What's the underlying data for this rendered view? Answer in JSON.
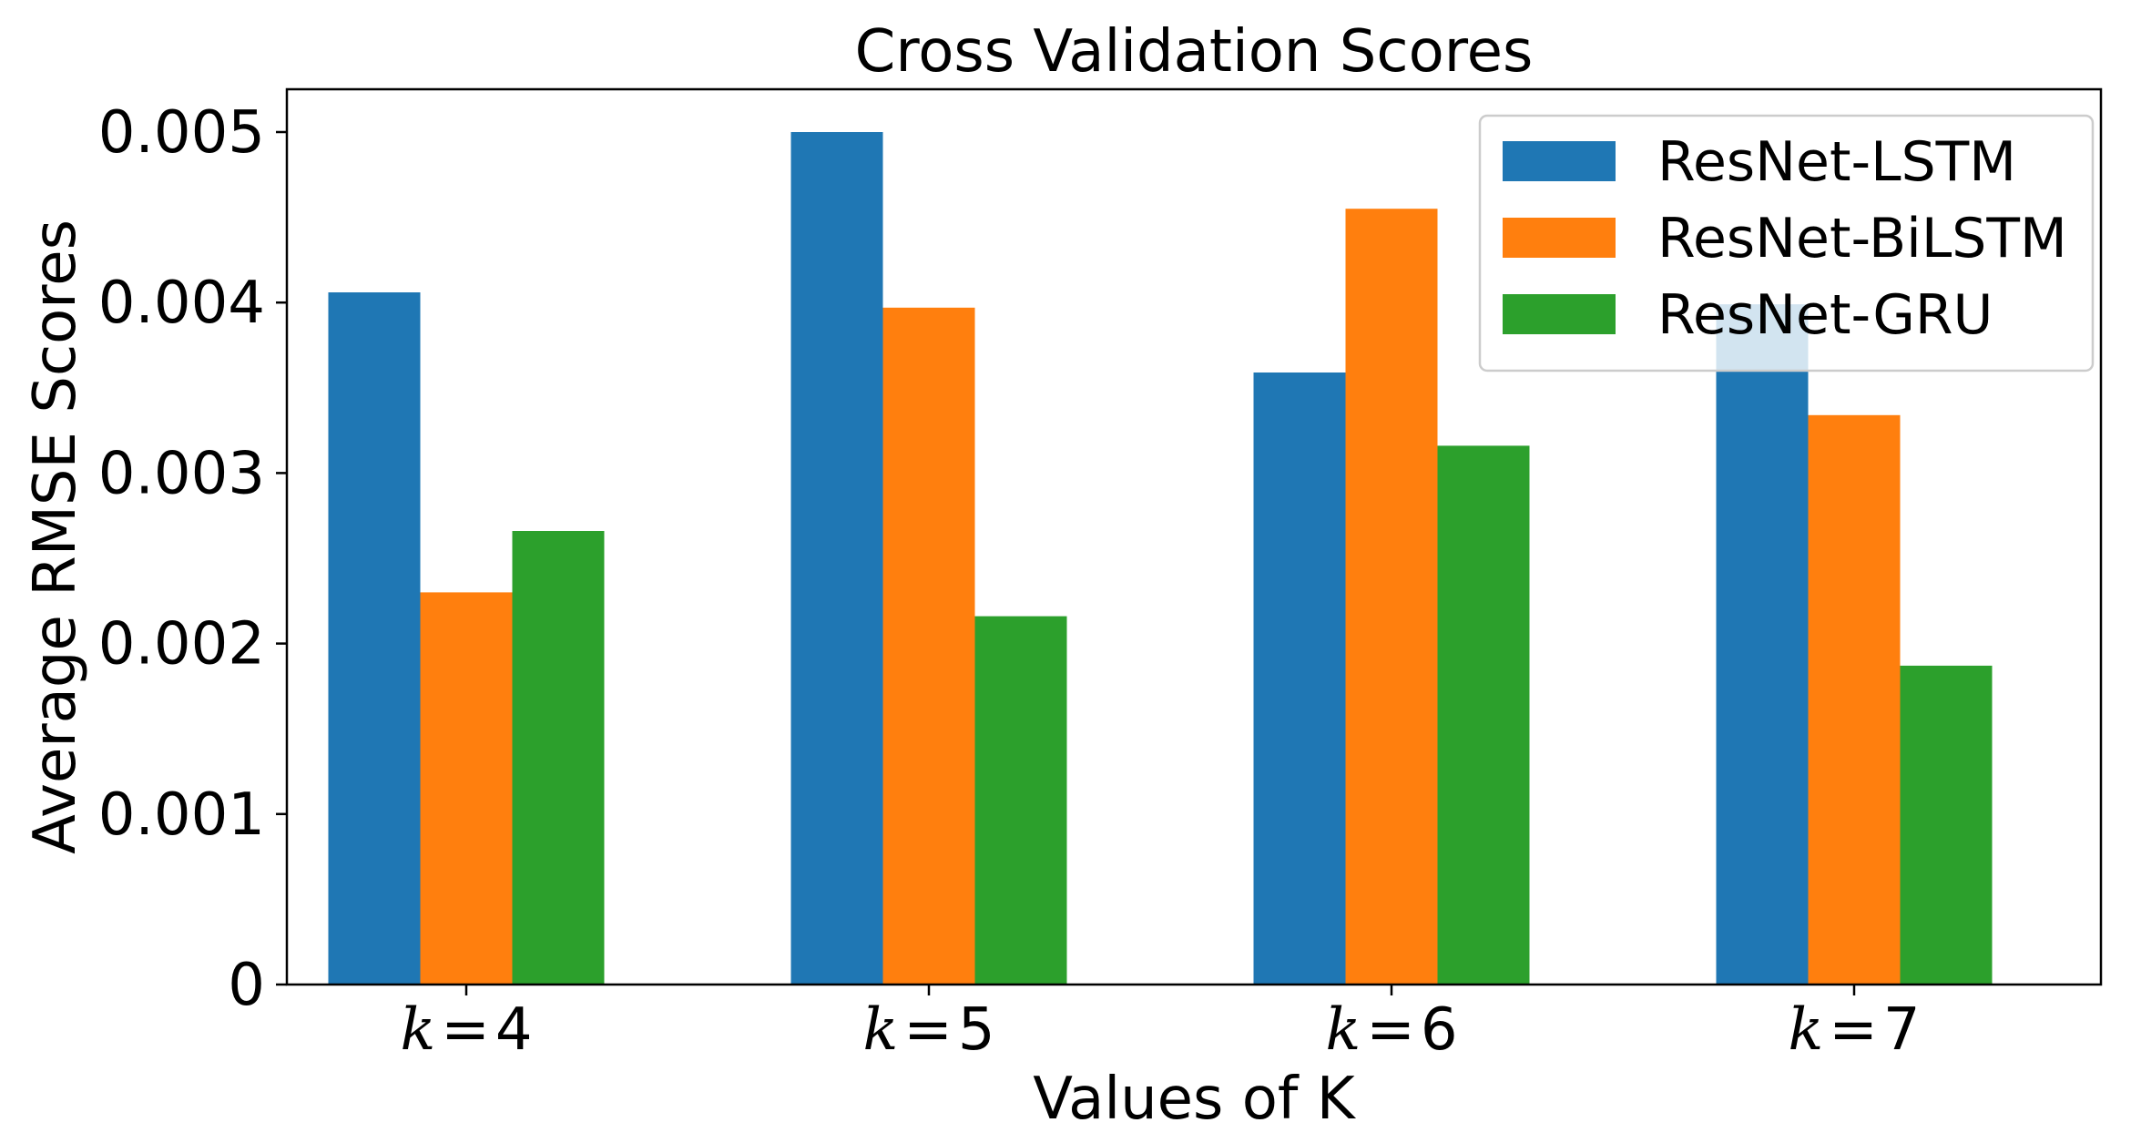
{
  "chart_data": {
    "type": "bar",
    "title": "Cross Validation Scores",
    "xlabel": "Values of K",
    "ylabel": "Average RMSE Scores",
    "categories": [
      {
        "var": "k",
        "eq": "=",
        "num": "4"
      },
      {
        "var": "k",
        "eq": "=",
        "num": "5"
      },
      {
        "var": "k",
        "eq": "=",
        "num": "6"
      },
      {
        "var": "k",
        "eq": "=",
        "num": "7"
      }
    ],
    "ylim": [
      0,
      0.0052
    ],
    "yticks": [
      {
        "value": 0,
        "label": "0"
      },
      {
        "value": 0.001,
        "label": "0.001"
      },
      {
        "value": 0.002,
        "label": "0.002"
      },
      {
        "value": 0.003,
        "label": "0.003"
      },
      {
        "value": 0.004,
        "label": "0.004"
      },
      {
        "value": 0.005,
        "label": "0.005"
      }
    ],
    "series": [
      {
        "name": "ResNet-LSTM",
        "color": "#1f77b4",
        "values": [
          0.00406,
          0.005,
          0.00359,
          0.00399
        ]
      },
      {
        "name": "ResNet-BiLSTM",
        "color": "#ff7f0e",
        "values": [
          0.0023,
          0.00397,
          0.00455,
          0.00334
        ]
      },
      {
        "name": "ResNet-GRU",
        "color": "#2ca02c",
        "values": [
          0.00266,
          0.00216,
          0.00316,
          0.00187
        ]
      }
    ],
    "legend_position": "top-right",
    "grid": false
  }
}
